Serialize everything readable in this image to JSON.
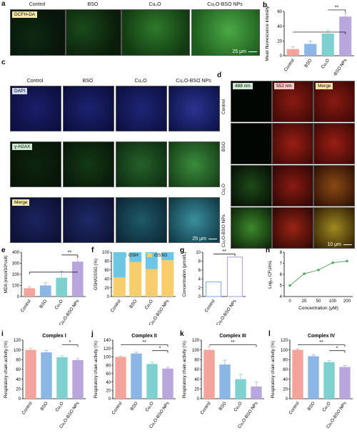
{
  "panels": {
    "a": {
      "letter": "a",
      "tag": "DCFH-DA",
      "groups": [
        "Control",
        "BSO",
        "Cu₂O",
        "Cu₂O-BSO NPs"
      ],
      "scale": "25 μm"
    },
    "c": {
      "letter": "c",
      "groups": [
        "Control",
        "BSO",
        "Cu₂O",
        "Cu₂O-BSO NPs"
      ],
      "rows": [
        "DAPI",
        "γ-H2AX",
        "Merge"
      ],
      "scale": "25 μm"
    },
    "d": {
      "letter": "d",
      "cols": [
        "488 nm",
        "552 nm",
        "Merge"
      ],
      "rows": [
        "Control",
        "BSO",
        "Cu₂O",
        "Cu₂O-BSO NPs"
      ],
      "scale": "10 μm"
    }
  },
  "colors": {
    "pink": "#f4a49a",
    "blue": "#8cb6e6",
    "teal": "#7fd1cf",
    "green": "#7ccd72",
    "purple": "#b8a6dc",
    "gsh": "#6cc6e4",
    "gssg": "#f8ce6c",
    "line": "#5aa86a"
  },
  "chart_data": [
    {
      "id": "b",
      "letter": "b",
      "type": "bar",
      "categories": [
        "Control",
        "BSO",
        "Cu₂O",
        "Cu₂O-BSO NPs"
      ],
      "values": [
        9,
        16,
        30,
        53
      ],
      "errors": [
        3,
        4,
        4,
        5
      ],
      "ylabel": "Mean fluorescence intensity",
      "ylim": [
        0,
        60
      ],
      "yticks": [
        0,
        20,
        40,
        60
      ],
      "sig": "**"
    },
    {
      "id": "e",
      "letter": "e",
      "type": "bar",
      "categories": [
        "Control",
        "BSO",
        "Cu₂O",
        "Cu₂O-BSO NPs"
      ],
      "values": [
        75,
        100,
        170,
        315
      ],
      "errors": [
        15,
        25,
        60,
        40
      ],
      "ylabel": "MDA (nmol/10⁶cell)",
      "ylim": [
        0,
        400
      ],
      "yticks": [
        0,
        100,
        200,
        300,
        400
      ],
      "sig": "**"
    },
    {
      "id": "f",
      "letter": "f",
      "type": "stacked-bar",
      "categories": [
        "Control",
        "BSO",
        "Cu₂O",
        "Cu₂O-BSO NPs"
      ],
      "series": [
        {
          "name": "GSH",
          "values": [
            57,
            22,
            38,
            18
          ]
        },
        {
          "name": "GSSG",
          "values": [
            43,
            78,
            62,
            82
          ]
        }
      ],
      "ylabel": "GSH/GSSG (%)",
      "ylim": [
        0,
        100
      ],
      "yticks": [
        0,
        20,
        40,
        60,
        80,
        100
      ]
    },
    {
      "id": "g",
      "letter": "g",
      "type": "bar",
      "categories": [
        "Control",
        "Cu₂O-BSO NPs"
      ],
      "values": [
        3.3,
        8.9
      ],
      "ylabel": "Concentration (μmol/L)",
      "ylim": [
        0,
        10
      ],
      "yticks": [
        0,
        2,
        4,
        6,
        8,
        10
      ],
      "sig": "**"
    },
    {
      "id": "h",
      "letter": "h",
      "type": "line",
      "x": [
        0,
        25,
        50,
        100,
        200
      ],
      "y": [
        5.0,
        6.05,
        6.4,
        7.05,
        7.2
      ],
      "xlabel": "Concentration (μM)",
      "ylabel": "Log₁₀ CFU/mL",
      "ylim": [
        4,
        8
      ],
      "yticks": [
        4,
        5,
        6,
        7,
        8
      ]
    },
    {
      "id": "i",
      "letter": "i",
      "type": "bar",
      "title": "Complex I",
      "categories": [
        "Control",
        "BSO",
        "Cu₂O",
        "Cu₂O-BSO NPs"
      ],
      "values": [
        100,
        95,
        85,
        79
      ],
      "errors": [
        3,
        4,
        3,
        3
      ],
      "ylabel": "Respiratory chain activity (%)",
      "ylim": [
        0,
        120
      ],
      "yticks": [
        0,
        20,
        40,
        60,
        80,
        100,
        120
      ],
      "sig": [
        "*"
      ]
    },
    {
      "id": "j",
      "letter": "j",
      "type": "bar",
      "title": "Complex II",
      "categories": [
        "Control",
        "BSO",
        "Cu₂O",
        "Cu₂O-BSO NPs"
      ],
      "values": [
        100,
        108,
        83,
        72
      ],
      "errors": [
        2,
        3,
        4,
        3
      ],
      "ylabel": "Respiratory chain activity (%)",
      "ylim": [
        0,
        140
      ],
      "yticks": [
        0,
        20,
        40,
        60,
        80,
        100,
        120,
        140
      ],
      "sig": [
        "**",
        "*"
      ]
    },
    {
      "id": "k",
      "letter": "k",
      "type": "bar",
      "title": "Complex III",
      "categories": [
        "Control",
        "BSO",
        "Cu₂O",
        "Cu₂O-BSO NPs"
      ],
      "values": [
        100,
        70,
        40,
        25
      ],
      "errors": [
        8,
        9,
        10,
        9
      ],
      "ylabel": "Respiratory chain activity (%)",
      "ylim": [
        0,
        120
      ],
      "yticks": [
        0,
        20,
        40,
        60,
        80,
        100,
        120
      ],
      "sig": [
        "**"
      ]
    },
    {
      "id": "l",
      "letter": "l",
      "type": "bar",
      "title": "Complex IV",
      "categories": [
        "Control",
        "BSO",
        "Cu₂O",
        "Cu₂O-BSO NPs"
      ],
      "values": [
        100,
        87,
        75,
        65
      ],
      "errors": [
        2,
        3,
        3,
        3
      ],
      "ylabel": "Respiratory chain activity (%)",
      "ylim": [
        0,
        120
      ],
      "yticks": [
        0,
        20,
        40,
        60,
        80,
        100,
        120
      ],
      "sig": [
        "**",
        "*"
      ]
    }
  ]
}
